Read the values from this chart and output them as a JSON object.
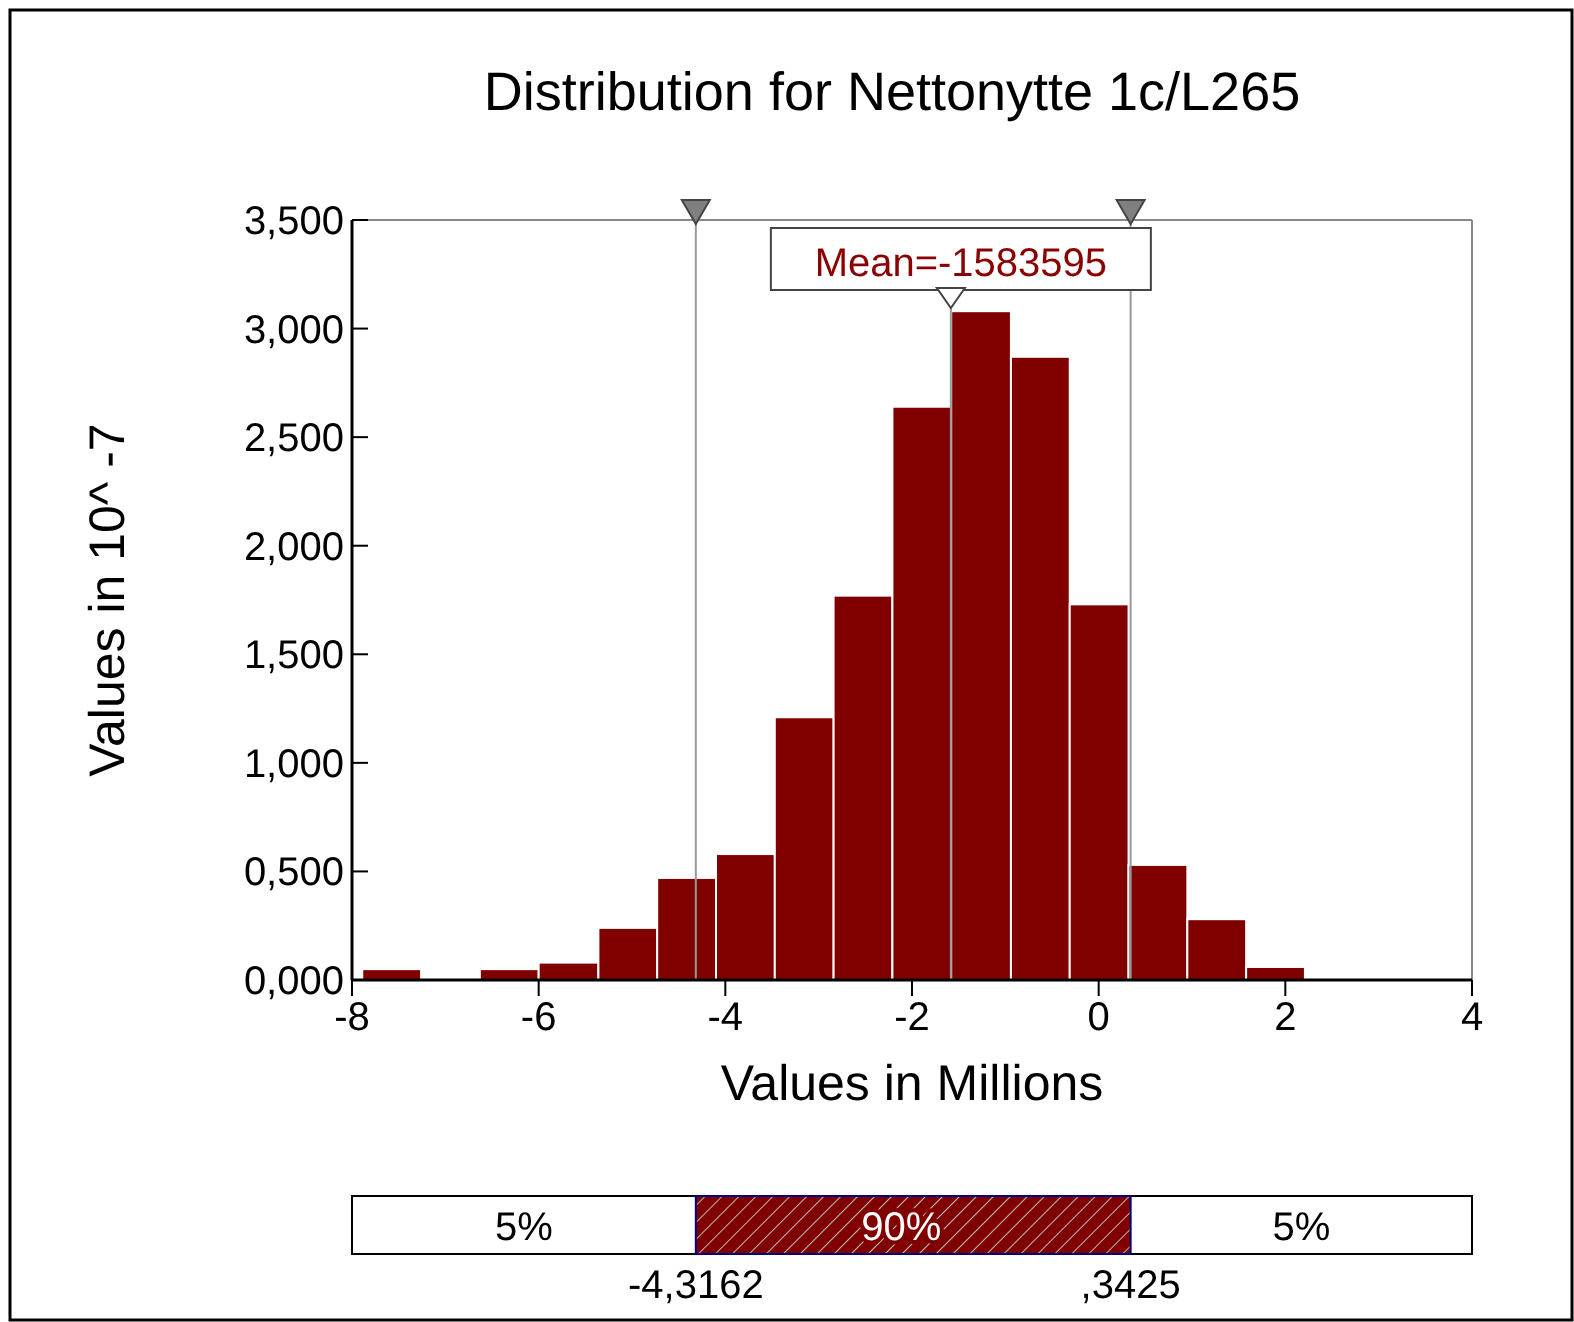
{
  "chart_data": {
    "type": "histogram",
    "title": "Distribution for Nettonytte 1c/L265",
    "xlabel": "Values in Millions",
    "ylabel": "Values in 10^ -7",
    "color": "#800000",
    "bins": [
      -7.89,
      -7.26,
      -6.63,
      -6.0,
      -5.36,
      -4.73,
      -4.1,
      -3.47,
      -2.84,
      -2.21,
      -1.58,
      -0.94,
      -0.31,
      0.32,
      0.95,
      1.58,
      2.21
    ],
    "values": [
      0.05,
      0,
      0.05,
      0.08,
      0.24,
      0.47,
      0.58,
      1.21,
      1.77,
      2.64,
      3.08,
      2.87,
      1.73,
      0.53,
      0.28,
      0.06
    ],
    "xlim": [
      -8,
      4
    ],
    "xticks": [
      -8,
      -6,
      -4,
      -2,
      0,
      2,
      4
    ],
    "ylim": [
      0,
      3.5
    ],
    "yticks": [
      {
        "value": 0,
        "label": "0,000"
      },
      {
        "value": 0.5,
        "label": "0,500"
      },
      {
        "value": 1,
        "label": "1,000"
      },
      {
        "value": 1.5,
        "label": "1,500"
      },
      {
        "value": 2,
        "label": "2,000"
      },
      {
        "value": 2.5,
        "label": "2,500"
      },
      {
        "value": 3,
        "label": "3,000"
      },
      {
        "value": 3.5,
        "label": "3,500"
      }
    ],
    "ref_lines": [
      {
        "axis": "x",
        "value": -4.3162,
        "color": "#999999"
      },
      {
        "axis": "x",
        "value": 0.3425,
        "color": "#999999"
      },
      {
        "axis": "x",
        "value": -1.583595,
        "label": "Mean=-1583595",
        "color": "#999999"
      }
    ],
    "annotations": [
      "5%",
      "90%",
      "5%",
      "-4,3162",
      ",3425"
    ],
    "grid": false
  }
}
